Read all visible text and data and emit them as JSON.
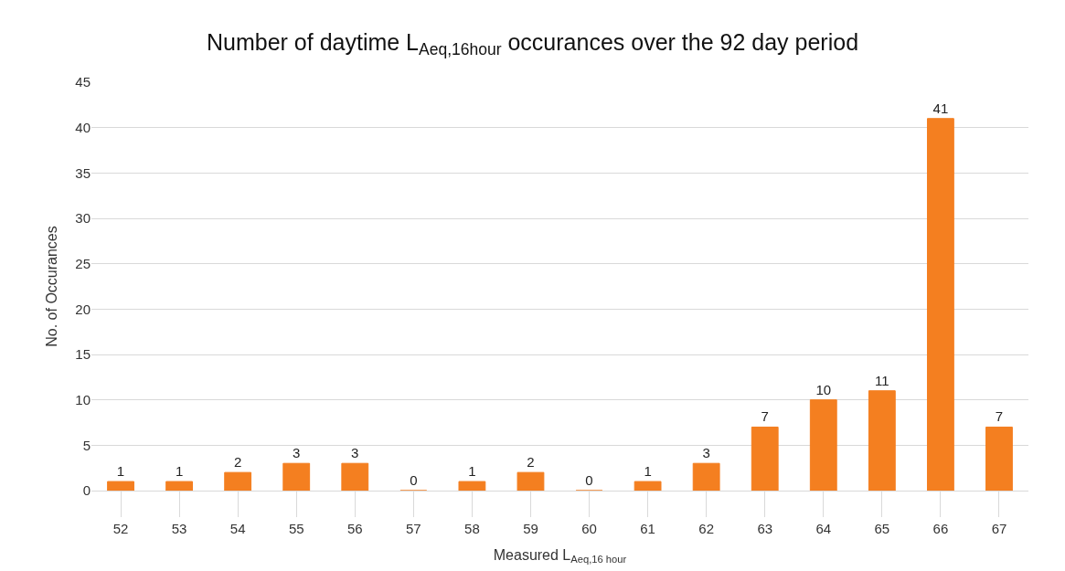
{
  "chart_data": {
    "type": "bar",
    "title": "Number of daytime L$_{Aeq,16hour}$ occurances over the 92 day period",
    "xlabel": "Measured L$_{Aeq,16 hour}$",
    "ylabel": "No. of Occurances",
    "categories": [
      "52",
      "53",
      "54",
      "55",
      "56",
      "57",
      "58",
      "59",
      "60",
      "61",
      "62",
      "63",
      "64",
      "65",
      "66",
      "67"
    ],
    "values": [
      1,
      1,
      2,
      3,
      3,
      0,
      1,
      2,
      0,
      1,
      3,
      7,
      10,
      11,
      41,
      7
    ],
    "color": "#f47f20",
    "ylim": [
      0,
      45
    ],
    "yticks": [
      0,
      5,
      10,
      15,
      20,
      25,
      30,
      35,
      40,
      45
    ],
    "grid": "y",
    "data_labels": true,
    "legend": false
  }
}
